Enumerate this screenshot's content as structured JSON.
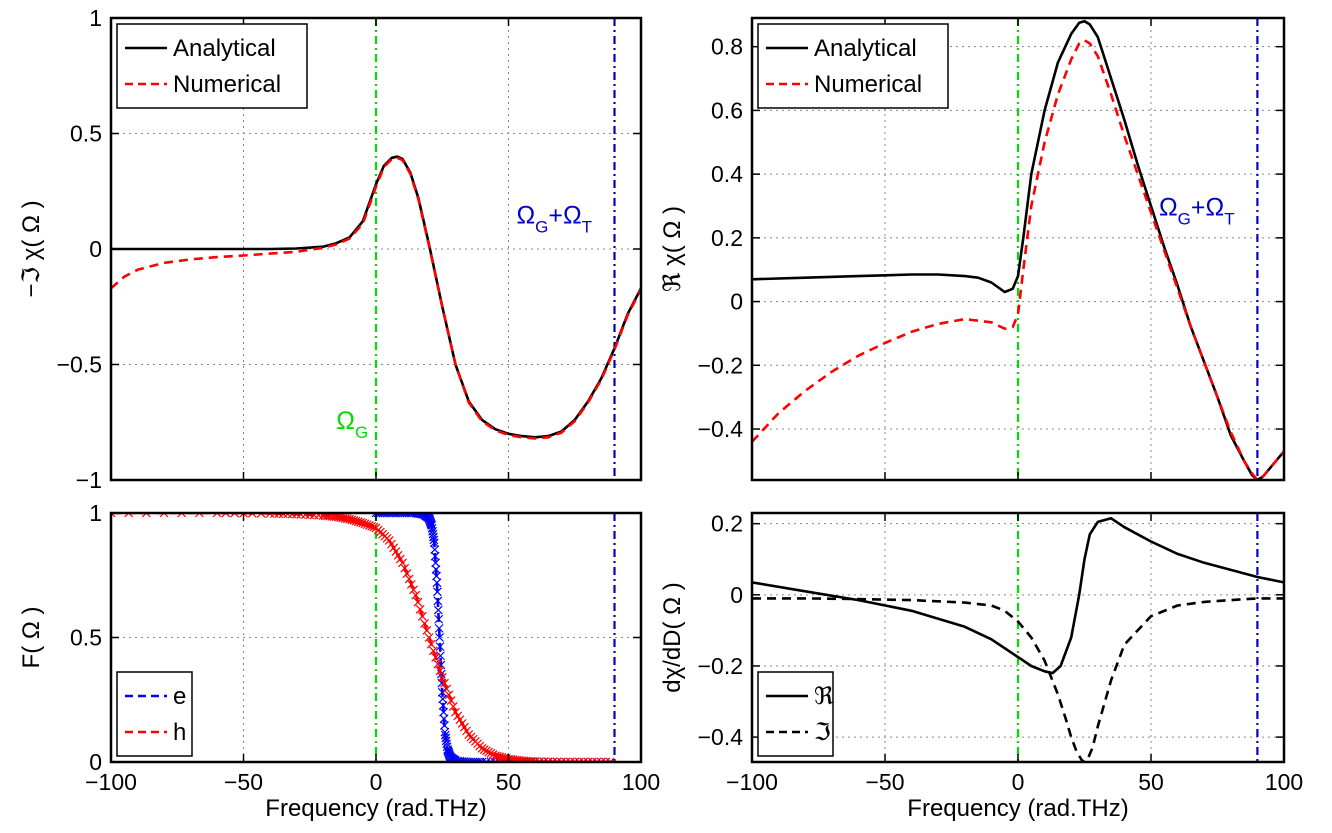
{
  "colors": {
    "analytical": "#000000",
    "numerical": "#ff0000",
    "electron": "#0000ff",
    "hole": "#ff0000",
    "omega_g_line": "#00dd00",
    "omega_gt_line": "#0000cc",
    "grid": "#888888"
  },
  "chart_data": [
    {
      "id": "top-left",
      "type": "line",
      "title": "",
      "xlabel": "",
      "ylabel": "−ℑ χ( Ω )",
      "xlim": [
        -100,
        100
      ],
      "ylim": [
        -1,
        1
      ],
      "xticks": [
        -100,
        -50,
        0,
        50,
        100
      ],
      "yticks": [
        -1,
        -0.5,
        0,
        0.5,
        1
      ],
      "ytick_labels": [
        "−1",
        "−0.5",
        "0",
        "0.5",
        "1"
      ],
      "show_xtick_labels": false,
      "grid": true,
      "legend": {
        "position": "top-left",
        "entries": [
          "Analytical",
          "Numerical"
        ]
      },
      "vlines": [
        {
          "x": 0,
          "color": "green"
        },
        {
          "x": 90,
          "color": "blue"
        }
      ],
      "annotations": [
        {
          "text": "Ω",
          "sub": "G",
          "x": -15,
          "y": -0.78,
          "color": "green"
        },
        {
          "text": "Ω",
          "sub": "G",
          "text2": "+Ω",
          "sub2": "T",
          "x": 53,
          "y": 0.11,
          "color": "blue"
        }
      ],
      "series": [
        {
          "name": "Analytical",
          "style": "solid",
          "color": "#000000",
          "x": [
            -100,
            -80,
            -60,
            -40,
            -30,
            -20,
            -15,
            -10,
            -5,
            0,
            3,
            6,
            8,
            10,
            13,
            16,
            20,
            25,
            30,
            35,
            40,
            45,
            50,
            55,
            60,
            65,
            70,
            75,
            80,
            85,
            90,
            95,
            100
          ],
          "y": [
            0,
            0,
            0,
            0,
            0.002,
            0.01,
            0.025,
            0.05,
            0.12,
            0.28,
            0.36,
            0.395,
            0.4,
            0.39,
            0.33,
            0.22,
            0.02,
            -0.25,
            -0.5,
            -0.66,
            -0.74,
            -0.78,
            -0.8,
            -0.81,
            -0.815,
            -0.81,
            -0.79,
            -0.74,
            -0.66,
            -0.56,
            -0.43,
            -0.28,
            -0.17
          ]
        },
        {
          "name": "Numerical",
          "style": "dashed",
          "color": "#ff0000",
          "x": [
            -100,
            -95,
            -90,
            -80,
            -70,
            -60,
            -50,
            -40,
            -30,
            -20,
            -15,
            -10,
            -5,
            0,
            3,
            6,
            8,
            10,
            13,
            16,
            20,
            25,
            30,
            35,
            40,
            45,
            50,
            55,
            60,
            65,
            70,
            75,
            80,
            85,
            90,
            95,
            100
          ],
          "y": [
            -0.17,
            -0.12,
            -0.09,
            -0.06,
            -0.045,
            -0.035,
            -0.028,
            -0.02,
            -0.012,
            0.005,
            0.02,
            0.045,
            0.11,
            0.27,
            0.355,
            0.39,
            0.395,
            0.385,
            0.325,
            0.215,
            0.015,
            -0.25,
            -0.5,
            -0.665,
            -0.745,
            -0.785,
            -0.805,
            -0.815,
            -0.82,
            -0.815,
            -0.795,
            -0.745,
            -0.665,
            -0.565,
            -0.435,
            -0.285,
            -0.175
          ]
        }
      ]
    },
    {
      "id": "top-right",
      "type": "line",
      "title": "",
      "xlabel": "",
      "ylabel": "ℜ χ( Ω )",
      "xlim": [
        -100,
        100
      ],
      "ylim": [
        -0.56,
        0.89
      ],
      "xticks": [
        -100,
        -50,
        0,
        50,
        100
      ],
      "yticks": [
        -0.4,
        -0.2,
        0,
        0.2,
        0.4,
        0.6,
        0.8
      ],
      "ytick_labels": [
        "−0.4",
        "−0.2",
        "0",
        "0.2",
        "0.4",
        "0.6",
        "0.8"
      ],
      "show_xtick_labels": false,
      "grid": true,
      "legend": {
        "position": "top-left",
        "entries": [
          "Analytical",
          "Numerical"
        ]
      },
      "vlines": [
        {
          "x": 0,
          "color": "green"
        },
        {
          "x": 90,
          "color": "blue"
        }
      ],
      "annotations": [
        {
          "text": "Ω",
          "sub": "G",
          "text2": "+Ω",
          "sub2": "T",
          "x": 53,
          "y": 0.27,
          "color": "blue"
        }
      ],
      "series": [
        {
          "name": "Analytical",
          "style": "solid",
          "color": "#000000",
          "x": [
            -100,
            -80,
            -60,
            -40,
            -30,
            -20,
            -15,
            -10,
            -5,
            -2,
            0,
            2,
            5,
            10,
            15,
            20,
            23,
            25,
            27,
            30,
            35,
            40,
            45,
            50,
            55,
            60,
            65,
            70,
            75,
            80,
            85,
            88,
            90,
            92,
            95,
            100
          ],
          "y": [
            0.07,
            0.075,
            0.08,
            0.085,
            0.085,
            0.08,
            0.075,
            0.06,
            0.03,
            0.04,
            0.08,
            0.2,
            0.4,
            0.6,
            0.75,
            0.84,
            0.875,
            0.88,
            0.87,
            0.83,
            0.7,
            0.57,
            0.43,
            0.3,
            0.17,
            0.05,
            -0.08,
            -0.19,
            -0.3,
            -0.42,
            -0.5,
            -0.545,
            -0.56,
            -0.55,
            -0.52,
            -0.47
          ]
        },
        {
          "name": "Numerical",
          "style": "dashed",
          "color": "#ff0000",
          "x": [
            -100,
            -90,
            -80,
            -70,
            -60,
            -50,
            -40,
            -30,
            -20,
            -15,
            -10,
            -5,
            -2,
            0,
            2,
            5,
            10,
            15,
            20,
            23,
            25,
            27,
            30,
            35,
            40,
            45,
            50,
            55,
            60,
            65,
            70,
            75,
            80,
            85,
            88,
            90,
            92,
            95,
            100
          ],
          "y": [
            -0.44,
            -0.35,
            -0.28,
            -0.22,
            -0.17,
            -0.13,
            -0.095,
            -0.07,
            -0.055,
            -0.06,
            -0.065,
            -0.085,
            -0.08,
            -0.04,
            0.1,
            0.3,
            0.5,
            0.65,
            0.76,
            0.81,
            0.82,
            0.81,
            0.77,
            0.65,
            0.52,
            0.4,
            0.28,
            0.16,
            0.04,
            -0.08,
            -0.19,
            -0.3,
            -0.41,
            -0.5,
            -0.54,
            -0.56,
            -0.55,
            -0.52,
            -0.47
          ]
        }
      ]
    },
    {
      "id": "bottom-left",
      "type": "line",
      "title": "",
      "xlabel": "Frequency (rad.THz)",
      "ylabel": "F( Ω )",
      "xlim": [
        -100,
        100
      ],
      "ylim": [
        0,
        1
      ],
      "xticks": [
        -100,
        -50,
        0,
        50,
        100
      ],
      "xtick_labels": [
        "−100",
        "−50",
        "0",
        "50",
        "100"
      ],
      "yticks": [
        0,
        0.5,
        1
      ],
      "ytick_labels": [
        "0",
        "0.5",
        "1"
      ],
      "show_xtick_labels": true,
      "grid": true,
      "legend": {
        "position": "bottom-left",
        "entries": [
          "e",
          "h"
        ]
      },
      "vlines": [
        {
          "x": 0,
          "color": "green"
        },
        {
          "x": 90,
          "color": "blue"
        }
      ],
      "annotations": [],
      "series": [
        {
          "name": "e",
          "style": "dashed",
          "color": "#0000ff",
          "markers": true,
          "x": [
            0,
            5,
            10,
            15,
            18,
            20,
            21,
            22,
            23,
            24,
            25,
            26,
            27,
            28,
            30,
            35,
            40,
            50,
            60,
            70,
            80,
            90
          ],
          "y": [
            1,
            1,
            1,
            1,
            0.995,
            0.98,
            0.95,
            0.88,
            0.72,
            0.5,
            0.28,
            0.12,
            0.05,
            0.02,
            0.005,
            0,
            0,
            0,
            0,
            0,
            0,
            0
          ]
        },
        {
          "name": "h",
          "style": "dashed",
          "color": "#ff0000",
          "markers": true,
          "x": [
            -100,
            -60,
            -40,
            -30,
            -20,
            -15,
            -10,
            -5,
            0,
            5,
            10,
            15,
            20,
            25,
            30,
            35,
            40,
            45,
            50,
            55,
            60,
            70,
            80,
            90
          ],
          "y": [
            1,
            1,
            0.998,
            0.995,
            0.99,
            0.985,
            0.975,
            0.96,
            0.94,
            0.89,
            0.8,
            0.67,
            0.5,
            0.34,
            0.2,
            0.11,
            0.055,
            0.025,
            0.012,
            0.005,
            0.002,
            0.0005,
            0,
            0
          ]
        }
      ]
    },
    {
      "id": "bottom-right",
      "type": "line",
      "title": "",
      "xlabel": "Frequency (rad.THz)",
      "ylabel": "dχ/dD( Ω )",
      "xlim": [
        -100,
        100
      ],
      "ylim": [
        -0.47,
        0.23
      ],
      "xticks": [
        -100,
        -50,
        0,
        50,
        100
      ],
      "xtick_labels": [
        "−100",
        "−50",
        "0",
        "50",
        "100"
      ],
      "yticks": [
        -0.4,
        -0.2,
        0,
        0.2
      ],
      "ytick_labels": [
        "−0.4",
        "−0.2",
        "0",
        "0.2"
      ],
      "show_xtick_labels": true,
      "grid": true,
      "legend": {
        "position": "bottom-left",
        "entries": [
          "ℜ",
          "ℑ"
        ]
      },
      "vlines": [
        {
          "x": 0,
          "color": "green"
        },
        {
          "x": 90,
          "color": "blue"
        }
      ],
      "annotations": [],
      "series": [
        {
          "name": "ℜ",
          "style": "solid",
          "color": "#000000",
          "x": [
            -100,
            -80,
            -60,
            -40,
            -20,
            -10,
            0,
            5,
            10,
            13,
            16,
            20,
            23,
            25,
            27,
            30,
            35,
            40,
            50,
            60,
            70,
            80,
            90,
            100
          ],
          "y": [
            0.035,
            0.01,
            -0.015,
            -0.045,
            -0.09,
            -0.125,
            -0.175,
            -0.2,
            -0.215,
            -0.22,
            -0.2,
            -0.12,
            0.0,
            0.1,
            0.17,
            0.205,
            0.215,
            0.19,
            0.15,
            0.115,
            0.09,
            0.07,
            0.05,
            0.035
          ]
        },
        {
          "name": "ℑ",
          "style": "dashed",
          "color": "#000000",
          "x": [
            -100,
            -80,
            -60,
            -40,
            -20,
            -10,
            -5,
            0,
            5,
            10,
            15,
            18,
            20,
            22,
            24,
            25,
            26,
            28,
            30,
            35,
            40,
            50,
            60,
            70,
            80,
            90,
            100
          ],
          "y": [
            -0.01,
            -0.01,
            -0.012,
            -0.015,
            -0.022,
            -0.03,
            -0.045,
            -0.075,
            -0.12,
            -0.185,
            -0.28,
            -0.35,
            -0.4,
            -0.44,
            -0.465,
            -0.47,
            -0.465,
            -0.43,
            -0.37,
            -0.24,
            -0.14,
            -0.06,
            -0.03,
            -0.02,
            -0.015,
            -0.01,
            -0.01
          ]
        }
      ]
    }
  ]
}
